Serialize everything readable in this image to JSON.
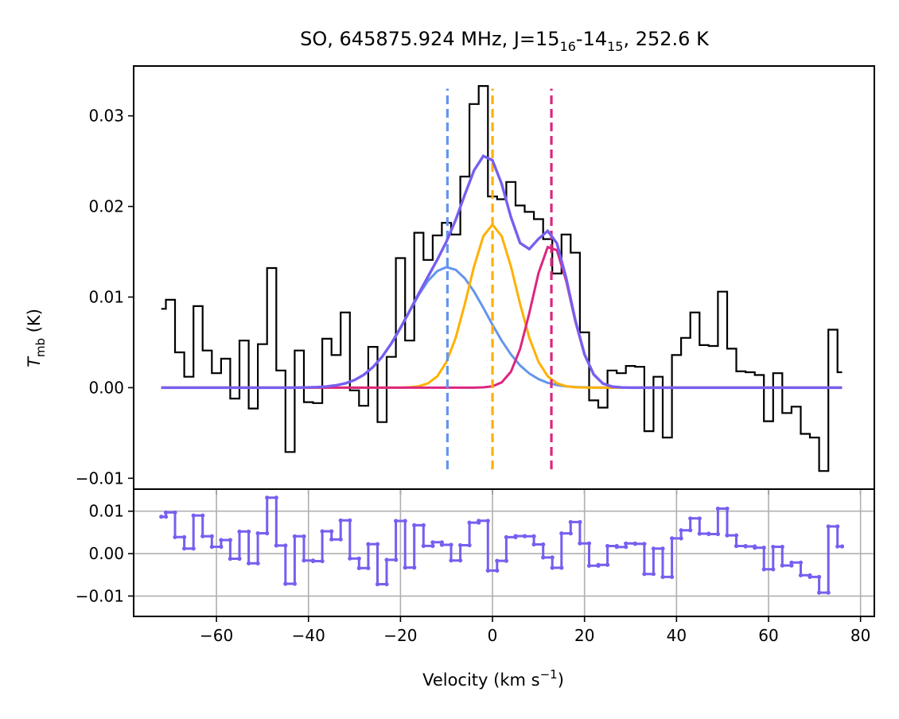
{
  "chart_data": [
    {
      "panel": "spectrum",
      "type": "line",
      "title": {
        "prefix": "SO, 645875.924 MHz, J=15",
        "sub1": "16",
        "mid": "-14",
        "sub2": "15",
        "suffix": ", 252.6 K"
      },
      "ylabel": {
        "main": "T",
        "sub": "mb",
        "unit": " (K)"
      },
      "xlim": [
        -78,
        83
      ],
      "ylim": [
        -0.0112,
        0.0355
      ],
      "yticks": [
        -0.01,
        0.0,
        0.01,
        0.02,
        0.03
      ],
      "ytick_labels": [
        "−0.01",
        "0.00",
        "0.01",
        "0.02",
        "0.03"
      ],
      "observed": {
        "name": "Observed spectrum (step)",
        "color": "#000000",
        "x": [
          -72,
          -70,
          -68,
          -66,
          -64,
          -62,
          -60,
          -58,
          -56,
          -54,
          -52,
          -50,
          -48,
          -46,
          -44,
          -42,
          -40,
          -38,
          -36,
          -34,
          -32,
          -30,
          -28,
          -26,
          -24,
          -22,
          -20,
          -18,
          -16,
          -14,
          -12,
          -10,
          -8,
          -6,
          -4,
          -2,
          0,
          2,
          4,
          6,
          8,
          10,
          12,
          14,
          16,
          18,
          20,
          22,
          24,
          26,
          28,
          30,
          32,
          34,
          36,
          38,
          40,
          42,
          44,
          46,
          48,
          50,
          52,
          54,
          56,
          58,
          60,
          62,
          64,
          66,
          68,
          70,
          72,
          74,
          76
        ],
        "y": [
          0.0087,
          0.0097,
          0.0039,
          0.0012,
          0.009,
          0.0041,
          0.0016,
          0.0032,
          -0.0012,
          0.0052,
          -0.0023,
          0.0048,
          0.0132,
          0.0019,
          -0.0071,
          0.0041,
          -0.0016,
          -0.0017,
          0.0054,
          0.0036,
          0.0083,
          -0.0003,
          -0.002,
          0.0045,
          -0.0038,
          0.0034,
          0.0143,
          0.0052,
          0.0171,
          0.0141,
          0.0168,
          0.0182,
          0.0169,
          0.0233,
          0.0313,
          0.0333,
          0.0211,
          0.0208,
          0.0227,
          0.0201,
          0.0194,
          0.0186,
          0.0164,
          0.0126,
          0.0169,
          0.0149,
          0.0061,
          -0.0014,
          -0.0022,
          0.0019,
          0.0016,
          0.0024,
          0.0023,
          -0.0048,
          0.0012,
          -0.0055,
          0.0036,
          0.0055,
          0.0083,
          0.0047,
          0.0046,
          0.0106,
          0.0043,
          0.0018,
          0.0017,
          0.0014,
          -0.0037,
          0.0016,
          -0.0028,
          -0.0021,
          -0.0051,
          -0.0055,
          -0.0092,
          0.0064,
          0.0017
        ]
      },
      "components": [
        {
          "name": "Gaussian component 1",
          "color": "#6495ed",
          "amp": 0.0133,
          "center": -9.8,
          "sigma": 8.6
        },
        {
          "name": "Gaussian component 2",
          "color": "#ffb000",
          "amp": 0.018,
          "center": 0.0,
          "sigma": 5.2
        },
        {
          "name": "Gaussian component 3",
          "color": "#dc267f",
          "amp": 0.0158,
          "center": 12.8,
          "sigma": 4.2
        }
      ],
      "total_fit": {
        "name": "Total fit",
        "color": "#785ef0",
        "x_range": [
          -72,
          76
        ]
      },
      "vlines": [
        {
          "name": "Component 1 center",
          "x": -9.8,
          "color": "#6495ed",
          "ymin": -0.009,
          "ymax": 0.033
        },
        {
          "name": "Component 2 center",
          "x": 0.0,
          "color": "#ffb000",
          "ymin": -0.009,
          "ymax": 0.033
        },
        {
          "name": "Component 3 center",
          "x": 12.8,
          "color": "#dc267f",
          "ymin": -0.009,
          "ymax": 0.033
        }
      ]
    },
    {
      "panel": "residual",
      "type": "line",
      "xlabel": {
        "main": "Velocity (km s",
        "sup": "−1",
        "close": ")"
      },
      "xlim": [
        -78,
        83
      ],
      "ylim": [
        -0.0148,
        0.0152
      ],
      "grid": true,
      "xticks": [
        -60,
        -40,
        -20,
        0,
        20,
        40,
        60,
        80
      ],
      "xtick_labels": [
        "−60",
        "−40",
        "−20",
        "0",
        "20",
        "40",
        "60",
        "80"
      ],
      "yticks": [
        -0.01,
        0.0,
        0.01
      ],
      "ytick_labels": [
        "−0.01",
        "0.00",
        "0.01"
      ],
      "residual": {
        "name": "Residual (observed minus fit)",
        "color": "#785ef0"
      }
    }
  ]
}
